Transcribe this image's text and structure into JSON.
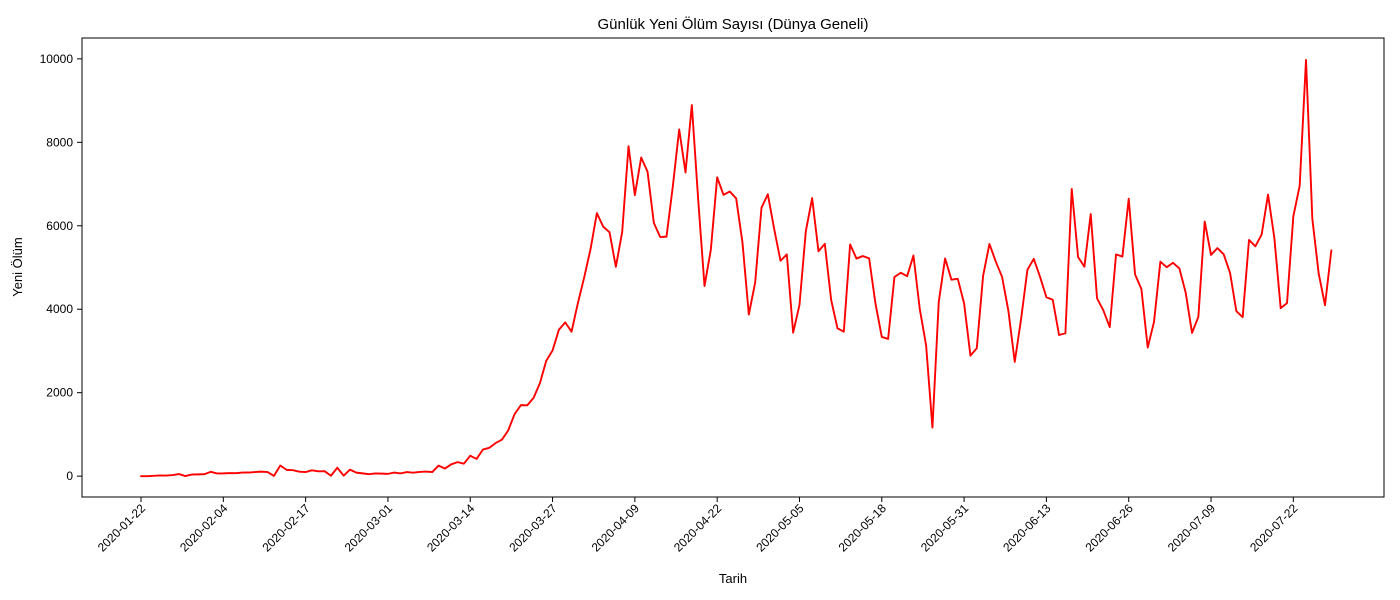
{
  "chart_data": {
    "type": "line",
    "title": "Günlük Yeni Ölüm Sayısı (Dünya Geneli)",
    "xlabel": "Tarih",
    "ylabel": "Yeni Ölüm",
    "x_start": "2020-01-22",
    "x_end": "2020-07-27",
    "ylim": [
      -500,
      10500
    ],
    "yticks": [
      0,
      2000,
      4000,
      6000,
      8000,
      10000
    ],
    "xticks": [
      "2020-01-22",
      "2020-02-04",
      "2020-02-17",
      "2020-03-01",
      "2020-03-14",
      "2020-03-27",
      "2020-04-09",
      "2020-04-22",
      "2020-05-05",
      "2020-05-18",
      "2020-05-31",
      "2020-06-13",
      "2020-06-26",
      "2020-07-09",
      "2020-07-22"
    ],
    "grid": false,
    "color": "#ff0000",
    "series": [
      {
        "values": [
          0,
          0,
          8,
          16,
          14,
          26,
          49,
          2,
          38,
          42,
          46,
          103,
          64,
          66,
          72,
          70,
          85,
          87,
          98,
          108,
          97,
          6,
          255,
          150,
          143,
          106,
          98,
          139,
          116,
          119,
          9,
          203,
          12,
          155,
          84,
          66,
          47,
          65,
          60,
          54,
          86,
          66,
          97,
          83,
          100,
          110,
          97,
          253,
          182,
          283,
          336,
          299,
          490,
          412,
          636,
          678,
          792,
          873,
          1096,
          1485,
          1702,
          1697,
          1876,
          2226,
          2762,
          3011,
          3507,
          3685,
          3462,
          4147,
          4765,
          5440,
          6301,
          5979,
          5845,
          5016,
          5854,
          7907,
          6734,
          7636,
          7297,
          6066,
          5730,
          5740,
          6951,
          8309,
          7279,
          8893,
          6630,
          4555,
          5425,
          7160,
          6741,
          6822,
          6655,
          5589,
          3873,
          4639,
          6431,
          6756,
          5926,
          5162,
          5314,
          3437,
          4102,
          5868,
          6664,
          5389,
          5567,
          4224,
          3544,
          3461,
          5553,
          5214,
          5274,
          5218,
          4138,
          3336,
          3288,
          4772,
          4874,
          4791,
          5286,
          4004,
          3134,
          1165,
          4183,
          5217,
          4707,
          4729,
          4141,
          2888,
          3064,
          4798,
          5565,
          5142,
          4774,
          3957,
          2738,
          3765,
          4944,
          5208,
          4774,
          4287,
          4226,
          3382,
          3424,
          6882,
          5251,
          5018,
          6281,
          4261,
          3972,
          3570,
          5314,
          5260,
          6649,
          4836,
          4485,
          3081,
          3701,
          5140,
          5008,
          5113,
          4978,
          4395,
          3432,
          3818,
          6101,
          5302,
          5465,
          5317,
          4874,
          3952,
          3810,
          5660,
          5507,
          5793,
          6747,
          5711,
          4026,
          4147,
          6228,
          6958,
          9974,
          6164,
          4858,
          4096,
          5411
        ]
      }
    ]
  }
}
